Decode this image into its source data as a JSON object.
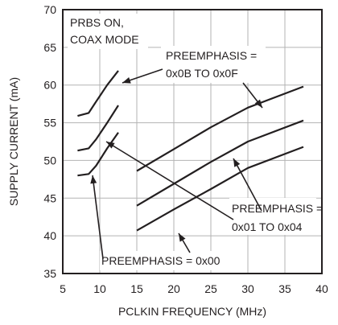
{
  "chart_data": {
    "type": "line",
    "xlabel": "PCLKIN FREQUENCY (MHz)",
    "ylabel": "SUPPLY CURRENT (mA)",
    "xlim": [
      5,
      40
    ],
    "ylim": [
      35,
      70
    ],
    "x_ticks": [
      "5",
      "10",
      "15",
      "20",
      "25",
      "30",
      "35",
      "40"
    ],
    "y_ticks": [
      "35",
      "40",
      "45",
      "50",
      "55",
      "60",
      "65",
      "70"
    ],
    "grid": true,
    "mode_label": [
      "PRBS ON,",
      "COAX MODE"
    ],
    "groups": [
      {
        "label": [
          "PREEMPHASIS =",
          "0x0B TO 0x0F"
        ],
        "series": [
          {
            "x": [
              7,
              8.5,
              9.5,
              11,
              12.5
            ],
            "y": [
              55.9,
              56.3,
              57.8,
              60.0,
              61.9
            ]
          },
          {
            "x": [
              15,
              20,
              25,
              30,
              37.5
            ],
            "y": [
              48.6,
              51.5,
              54.4,
              57.0,
              59.8
            ]
          }
        ]
      },
      {
        "label": [
          "PREEMPHASIS =",
          "0x01 TO 0x04"
        ],
        "series": [
          {
            "x": [
              7,
              8.5,
              9.5,
              11,
              12.5
            ],
            "y": [
              51.3,
              51.6,
              52.8,
              55.0,
              57.3
            ]
          },
          {
            "x": [
              15,
              20,
              25,
              30,
              37.5
            ],
            "y": [
              44.0,
              46.9,
              49.8,
              52.5,
              55.3
            ]
          }
        ]
      },
      {
        "label": [
          "PREEMPHASIS = 0x00"
        ],
        "series": [
          {
            "x": [
              7,
              8.5,
              9.5,
              11,
              12.5
            ],
            "y": [
              48.0,
              48.2,
              49.3,
              51.6,
              53.7
            ]
          },
          {
            "x": [
              15,
              20,
              25,
              30,
              37.5
            ],
            "y": [
              40.7,
              43.5,
              46.2,
              49.0,
              51.8
            ]
          }
        ]
      }
    ]
  }
}
